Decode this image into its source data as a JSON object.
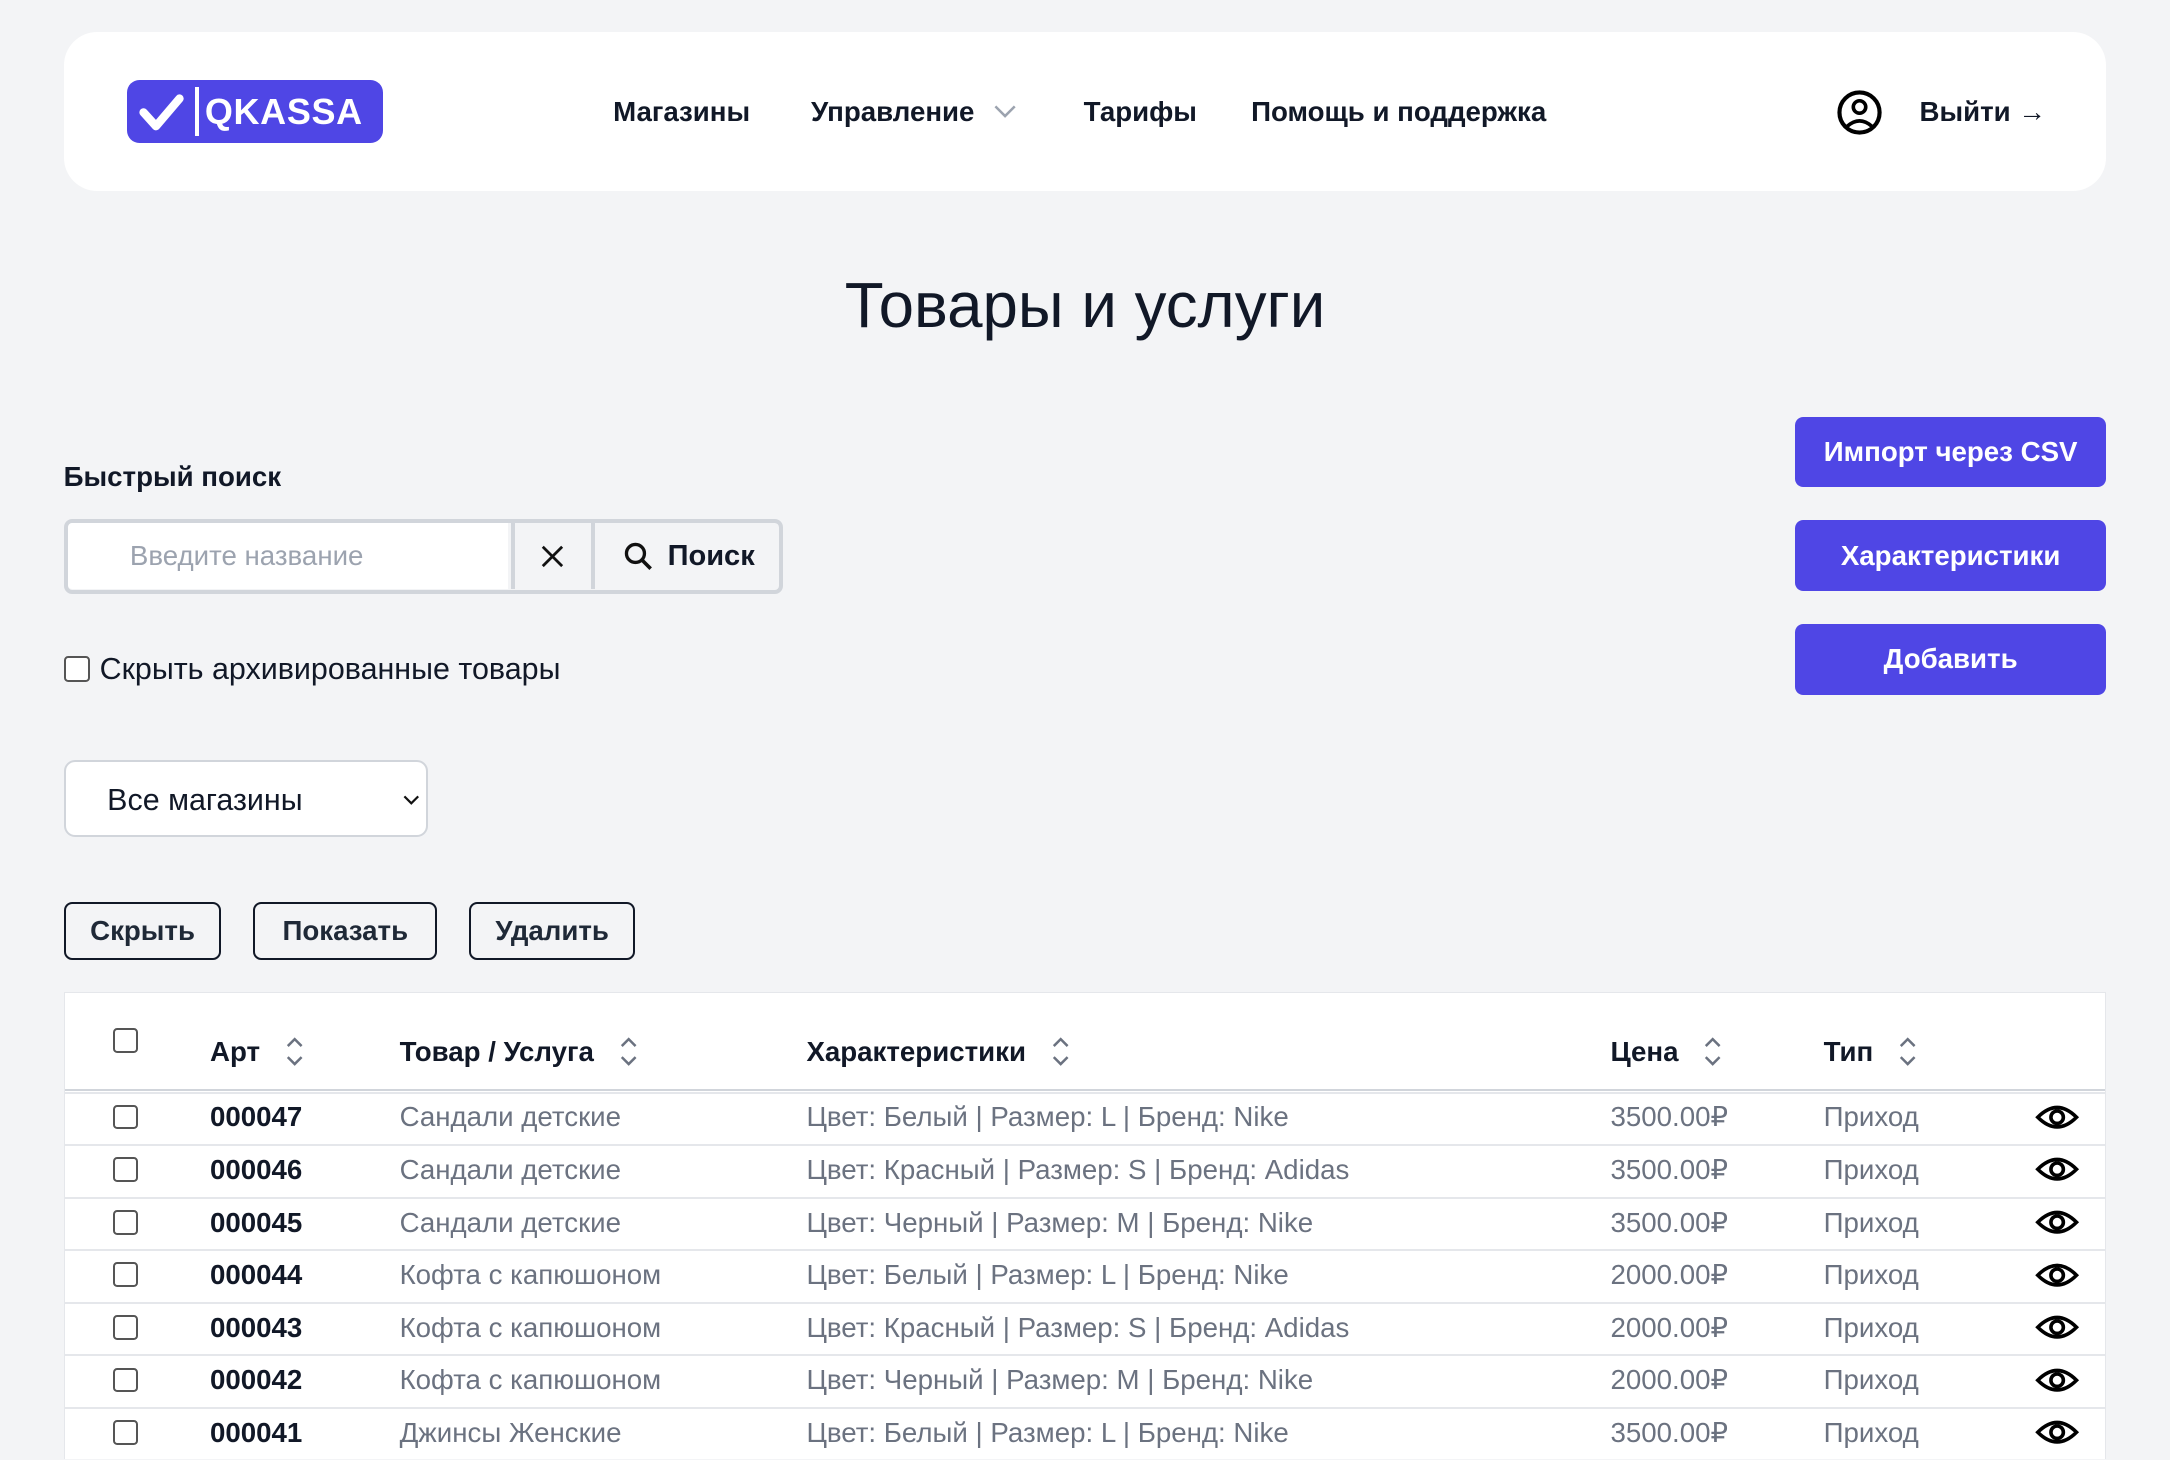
{
  "brand": {
    "name": "QKASSA",
    "accent": "#4f46e5"
  },
  "nav": {
    "items": [
      "Магазины",
      "Управление",
      "Тарифы",
      "Помощь и поддержка"
    ],
    "logout": "Выйти →"
  },
  "page": {
    "title": "Товары и услуги"
  },
  "search": {
    "label": "Быстрый поиск",
    "placeholder": "Введите название",
    "value": "",
    "button": "Поиск"
  },
  "actions": {
    "import_csv": "Импорт через CSV",
    "characteristics": "Характеристики",
    "add": "Добавить"
  },
  "filters": {
    "hide_archived": "Скрыть архивированные товары",
    "hide_archived_checked": false,
    "store_select": "Все магазины"
  },
  "bulk": {
    "hide": "Скрыть",
    "show": "Показать",
    "delete": "Удалить"
  },
  "table": {
    "columns": [
      "Арт",
      "Товар / Услуга",
      "Характеристики",
      "Цена",
      "Тип"
    ],
    "rows": [
      {
        "art": "000047",
        "name": "Сандали детские",
        "props": "Цвет: Белый | Размер: L | Бренд: Nike",
        "price": "3500.00₽",
        "type": "Приход"
      },
      {
        "art": "000046",
        "name": "Сандали детские",
        "props": "Цвет: Красный | Размер: S | Бренд: Adidas",
        "price": "3500.00₽",
        "type": "Приход"
      },
      {
        "art": "000045",
        "name": "Сандали детские",
        "props": "Цвет: Черный | Размер: M | Бренд: Nike",
        "price": "3500.00₽",
        "type": "Приход"
      },
      {
        "art": "000044",
        "name": "Кофта с капюшоном",
        "props": "Цвет: Белый | Размер: L | Бренд: Nike",
        "price": "2000.00₽",
        "type": "Приход"
      },
      {
        "art": "000043",
        "name": "Кофта с капюшоном",
        "props": "Цвет: Красный | Размер: S | Бренд: Adidas",
        "price": "2000.00₽",
        "type": "Приход"
      },
      {
        "art": "000042",
        "name": "Кофта с капюшоном",
        "props": "Цвет: Черный | Размер: M | Бренд: Nike",
        "price": "2000.00₽",
        "type": "Приход"
      },
      {
        "art": "000041",
        "name": "Джинсы Женские",
        "props": "Цвет: Белый | Размер: L | Бренд: Nike",
        "price": "3500.00₽",
        "type": "Приход"
      }
    ]
  }
}
